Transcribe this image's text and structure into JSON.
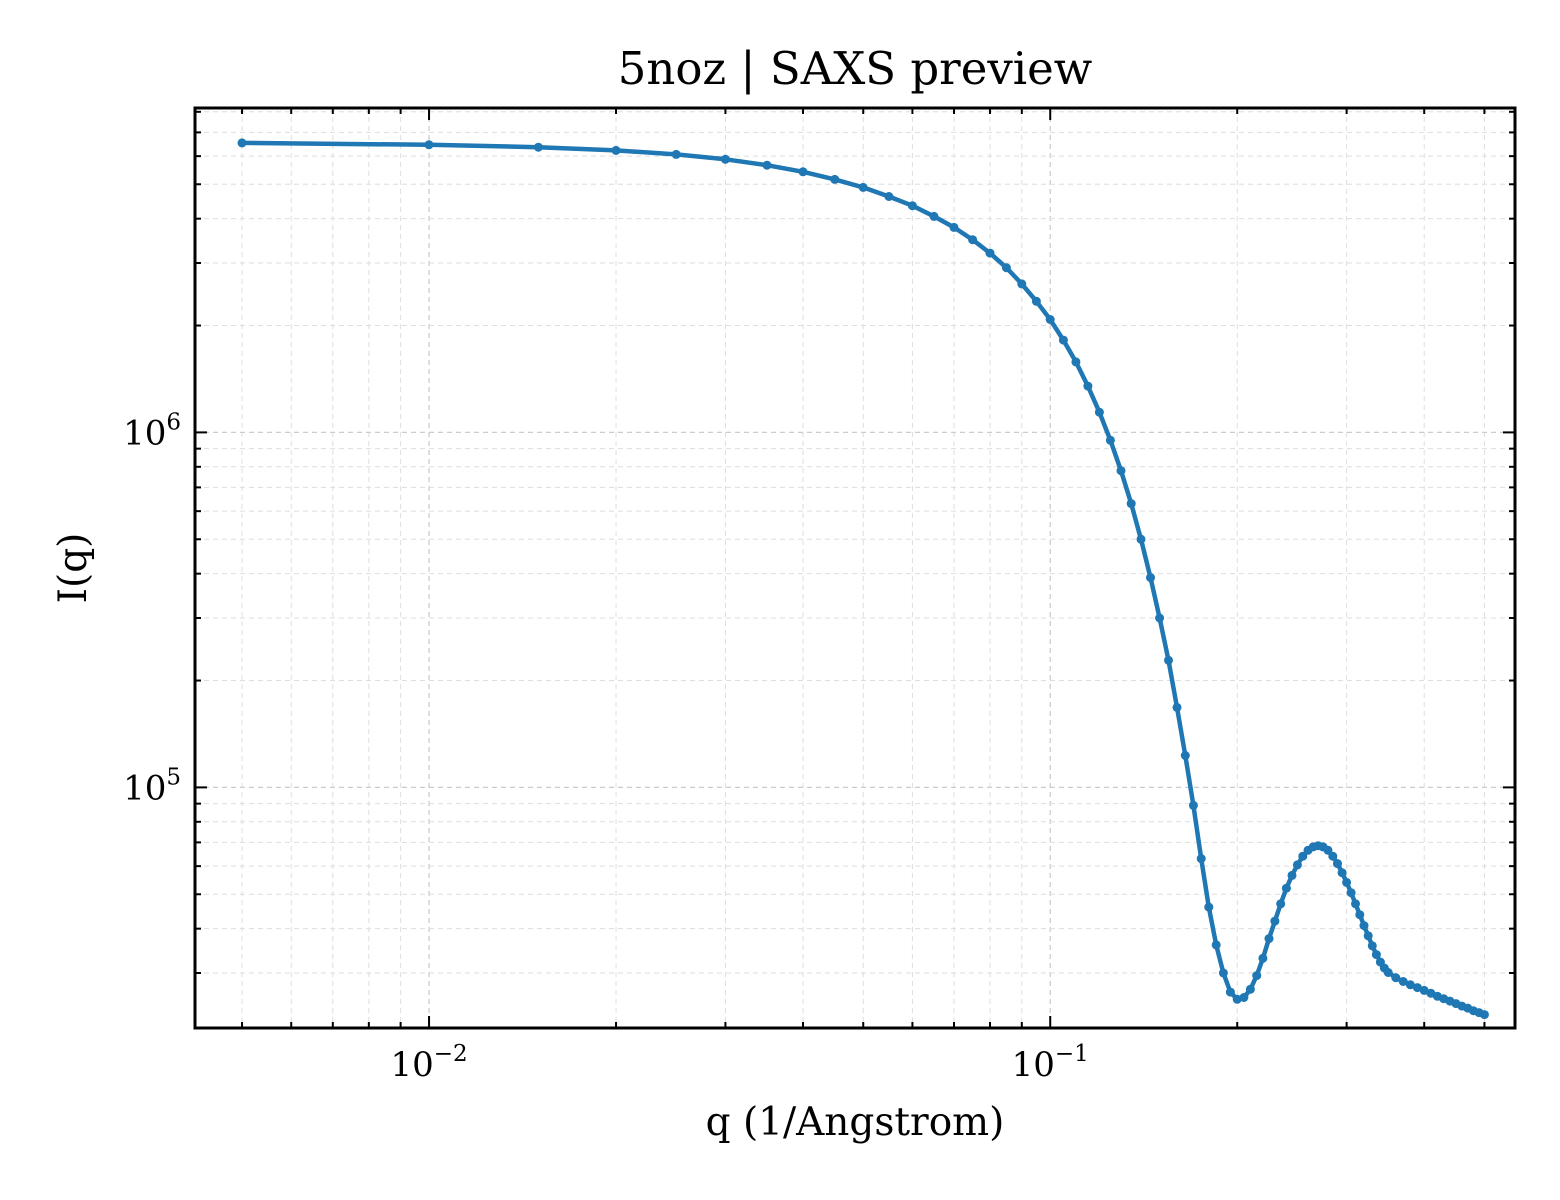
{
  "chart_data": {
    "type": "line",
    "title": "5noz | SAXS preview",
    "xlabel": "q (1/Angstrom)",
    "ylabel": "I(q)",
    "x_scale": "log",
    "y_scale": "log",
    "xlim": [
      0.0042,
      0.56
    ],
    "ylim": [
      21000,
      8200000
    ],
    "grid": true,
    "legend": "none",
    "x_ticks": [
      {
        "base": "10",
        "exp": "−2",
        "value": 0.01
      },
      {
        "base": "10",
        "exp": "−1",
        "value": 0.1
      }
    ],
    "y_ticks": [
      {
        "base": "10",
        "exp": "5",
        "value": 100000
      },
      {
        "base": "10",
        "exp": "6",
        "value": 1000000
      }
    ],
    "series": [
      {
        "color": "#1f77b4",
        "points": [
          [
            0.005,
            6540000
          ],
          [
            0.01,
            6460000
          ],
          [
            0.015,
            6360000
          ],
          [
            0.02,
            6230000
          ],
          [
            0.025,
            6070000
          ],
          [
            0.03,
            5880000
          ],
          [
            0.035,
            5660000
          ],
          [
            0.04,
            5420000
          ],
          [
            0.045,
            5160000
          ],
          [
            0.05,
            4900000
          ],
          [
            0.055,
            4620000
          ],
          [
            0.06,
            4350000
          ],
          [
            0.065,
            4060000
          ],
          [
            0.07,
            3780000
          ],
          [
            0.075,
            3490000
          ],
          [
            0.08,
            3200000
          ],
          [
            0.085,
            2910000
          ],
          [
            0.09,
            2620000
          ],
          [
            0.095,
            2340000
          ],
          [
            0.1,
            2080000
          ],
          [
            0.105,
            1820000
          ],
          [
            0.11,
            1580000
          ],
          [
            0.115,
            1350000
          ],
          [
            0.12,
            1140000
          ],
          [
            0.125,
            950000
          ],
          [
            0.13,
            780000
          ],
          [
            0.135,
            630000
          ],
          [
            0.14,
            500000
          ],
          [
            0.145,
            390000
          ],
          [
            0.15,
            300000
          ],
          [
            0.155,
            228000
          ],
          [
            0.16,
            168000
          ],
          [
            0.165,
            123000
          ],
          [
            0.17,
            89000
          ],
          [
            0.175,
            63000
          ],
          [
            0.18,
            46000
          ],
          [
            0.185,
            36000
          ],
          [
            0.19,
            30000
          ],
          [
            0.195,
            26500
          ],
          [
            0.2,
            25300
          ],
          [
            0.205,
            25600
          ],
          [
            0.21,
            27000
          ],
          [
            0.215,
            29500
          ],
          [
            0.22,
            33000
          ],
          [
            0.225,
            37500
          ],
          [
            0.23,
            42000
          ],
          [
            0.235,
            47000
          ],
          [
            0.24,
            52000
          ],
          [
            0.245,
            56500
          ],
          [
            0.25,
            60500
          ],
          [
            0.255,
            64000
          ],
          [
            0.26,
            66500
          ],
          [
            0.265,
            68000
          ],
          [
            0.27,
            68500
          ],
          [
            0.275,
            68000
          ],
          [
            0.28,
            66500
          ],
          [
            0.285,
            64000
          ],
          [
            0.29,
            61000
          ],
          [
            0.295,
            57500
          ],
          [
            0.3,
            54000
          ],
          [
            0.305,
            50500
          ],
          [
            0.31,
            47000
          ],
          [
            0.315,
            43800
          ],
          [
            0.32,
            40800
          ],
          [
            0.325,
            38200
          ],
          [
            0.33,
            35800
          ],
          [
            0.335,
            33800
          ],
          [
            0.34,
            32200
          ],
          [
            0.345,
            31000
          ],
          [
            0.35,
            30100
          ],
          [
            0.36,
            29100
          ],
          [
            0.37,
            28400
          ],
          [
            0.38,
            27800
          ],
          [
            0.39,
            27300
          ],
          [
            0.4,
            26800
          ],
          [
            0.41,
            26300
          ],
          [
            0.42,
            25800
          ],
          [
            0.43,
            25400
          ],
          [
            0.44,
            25000
          ],
          [
            0.45,
            24600
          ],
          [
            0.46,
            24200
          ],
          [
            0.47,
            23900
          ],
          [
            0.48,
            23500
          ],
          [
            0.49,
            23200
          ],
          [
            0.5,
            22900
          ]
        ]
      }
    ]
  }
}
